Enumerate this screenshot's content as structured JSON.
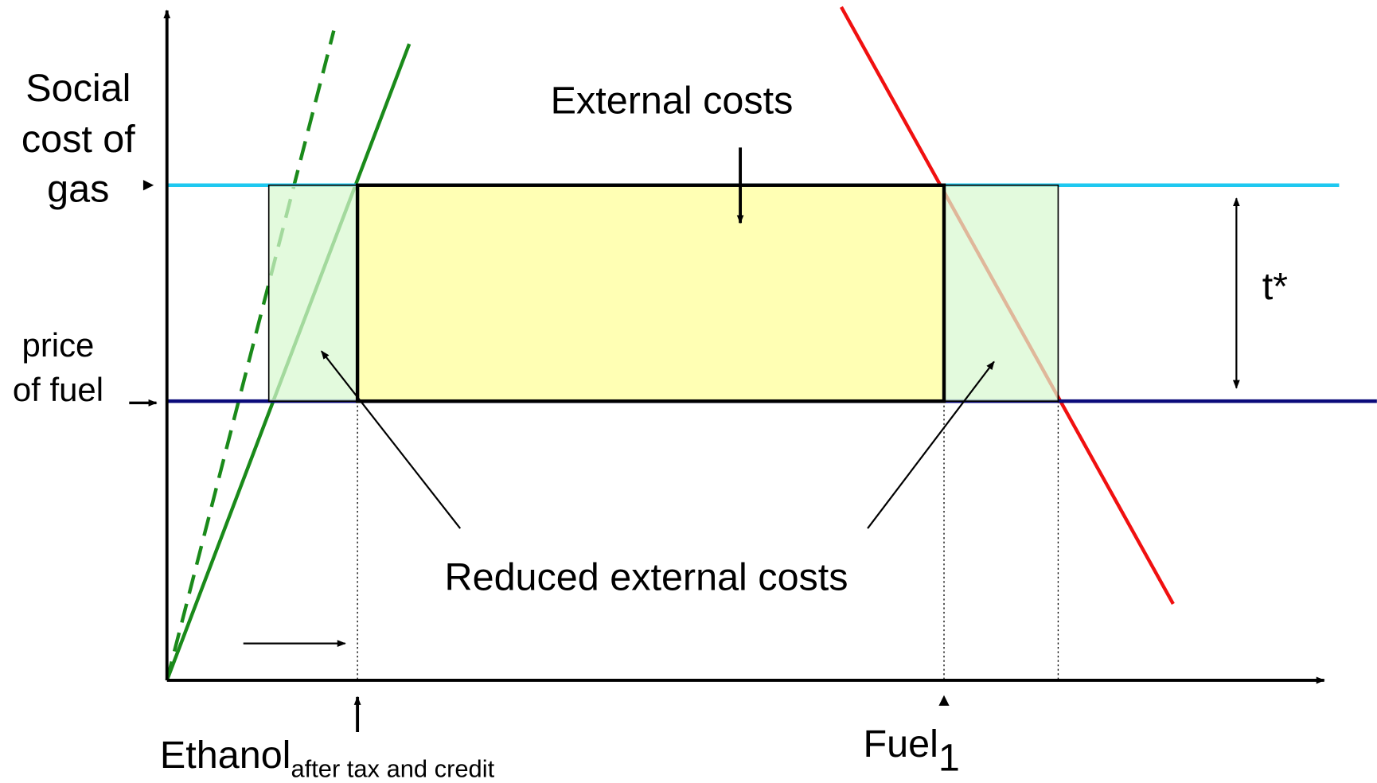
{
  "y_axis_label_top": [
    "Social",
    "cost of",
    "gas"
  ],
  "y_axis_label_bottom": [
    "price",
    "of fuel"
  ],
  "annotations": {
    "external_costs": "External costs",
    "reduced_external_costs": "Reduced external costs",
    "tax": "t*"
  },
  "x_labels": {
    "ethanol": {
      "main": "Ethanol",
      "sub": "after tax and credit"
    },
    "fuel": {
      "main": "Fuel",
      "sub": "1"
    }
  }
}
